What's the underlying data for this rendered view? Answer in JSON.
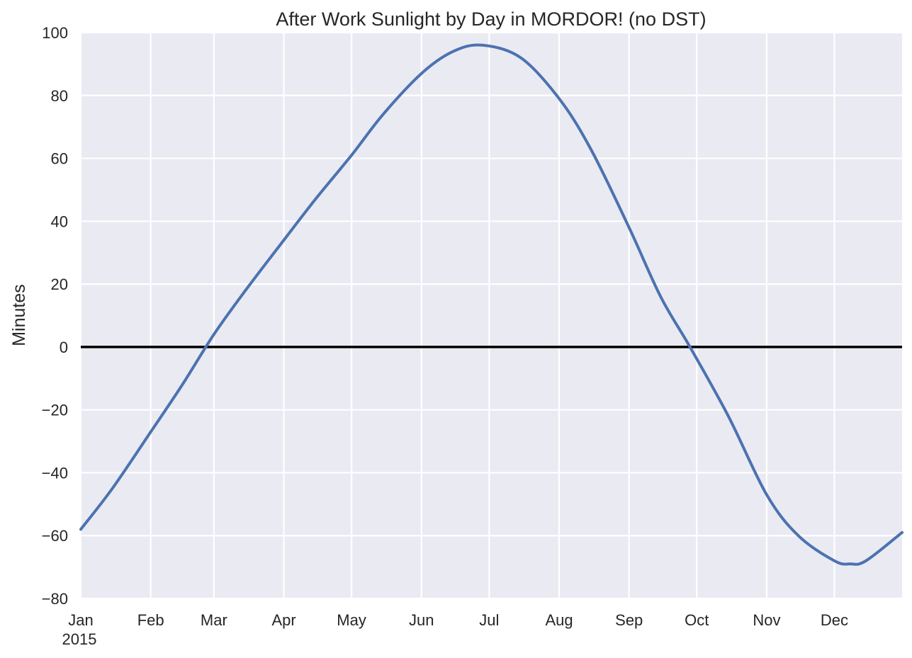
{
  "chart_data": {
    "type": "line",
    "title": "After Work Sunlight by Day in MORDOR! (no DST)",
    "xlabel": "",
    "ylabel": "Minutes",
    "xlim": [
      "2015-01-01",
      "2015-12-31"
    ],
    "ylim": [
      -80,
      100
    ],
    "grid": true,
    "x_ticks": [
      {
        "date": "2015-01-01",
        "label": "Jan"
      },
      {
        "date": "2015-02-01",
        "label": "Feb"
      },
      {
        "date": "2015-03-01",
        "label": "Mar"
      },
      {
        "date": "2015-04-01",
        "label": "Apr"
      },
      {
        "date": "2015-05-01",
        "label": "May"
      },
      {
        "date": "2015-06-01",
        "label": "Jun"
      },
      {
        "date": "2015-07-01",
        "label": "Jul"
      },
      {
        "date": "2015-08-01",
        "label": "Aug"
      },
      {
        "date": "2015-09-01",
        "label": "Sep"
      },
      {
        "date": "2015-10-01",
        "label": "Oct"
      },
      {
        "date": "2015-11-01",
        "label": "Nov"
      },
      {
        "date": "2015-12-01",
        "label": "Dec"
      }
    ],
    "x_year_label": "2015",
    "y_ticks": [
      -80,
      -60,
      -40,
      -20,
      0,
      20,
      40,
      60,
      80,
      100
    ],
    "y_tick_labels": [
      "−80",
      "−60",
      "−40",
      "−20",
      "0",
      "20",
      "40",
      "60",
      "80",
      "100"
    ],
    "series": [
      {
        "color": "#4c72b0",
        "x": [
          "2015-01-01",
          "2015-01-15",
          "2015-02-01",
          "2015-02-15",
          "2015-03-01",
          "2015-03-15",
          "2015-04-01",
          "2015-04-15",
          "2015-05-01",
          "2015-05-15",
          "2015-06-01",
          "2015-06-15",
          "2015-06-28",
          "2015-07-15",
          "2015-08-01",
          "2015-08-15",
          "2015-09-01",
          "2015-09-15",
          "2015-09-28",
          "2015-10-15",
          "2015-11-01",
          "2015-11-15",
          "2015-12-01",
          "2015-12-08",
          "2015-12-15",
          "2015-12-31"
        ],
        "y": [
          -58,
          -45,
          -27,
          -12,
          4,
          18,
          34,
          47,
          61,
          74,
          87,
          94,
          96,
          92,
          79,
          63,
          38,
          16,
          0,
          -22,
          -47,
          -60,
          -68,
          -69,
          -68,
          -59
        ]
      }
    ],
    "hline": {
      "y": 0,
      "color": "#000000"
    }
  },
  "colors": {
    "plot_background": "#eaeaf2",
    "grid": "#ffffff",
    "line": "#4c72b0",
    "zero_line": "#000000"
  }
}
